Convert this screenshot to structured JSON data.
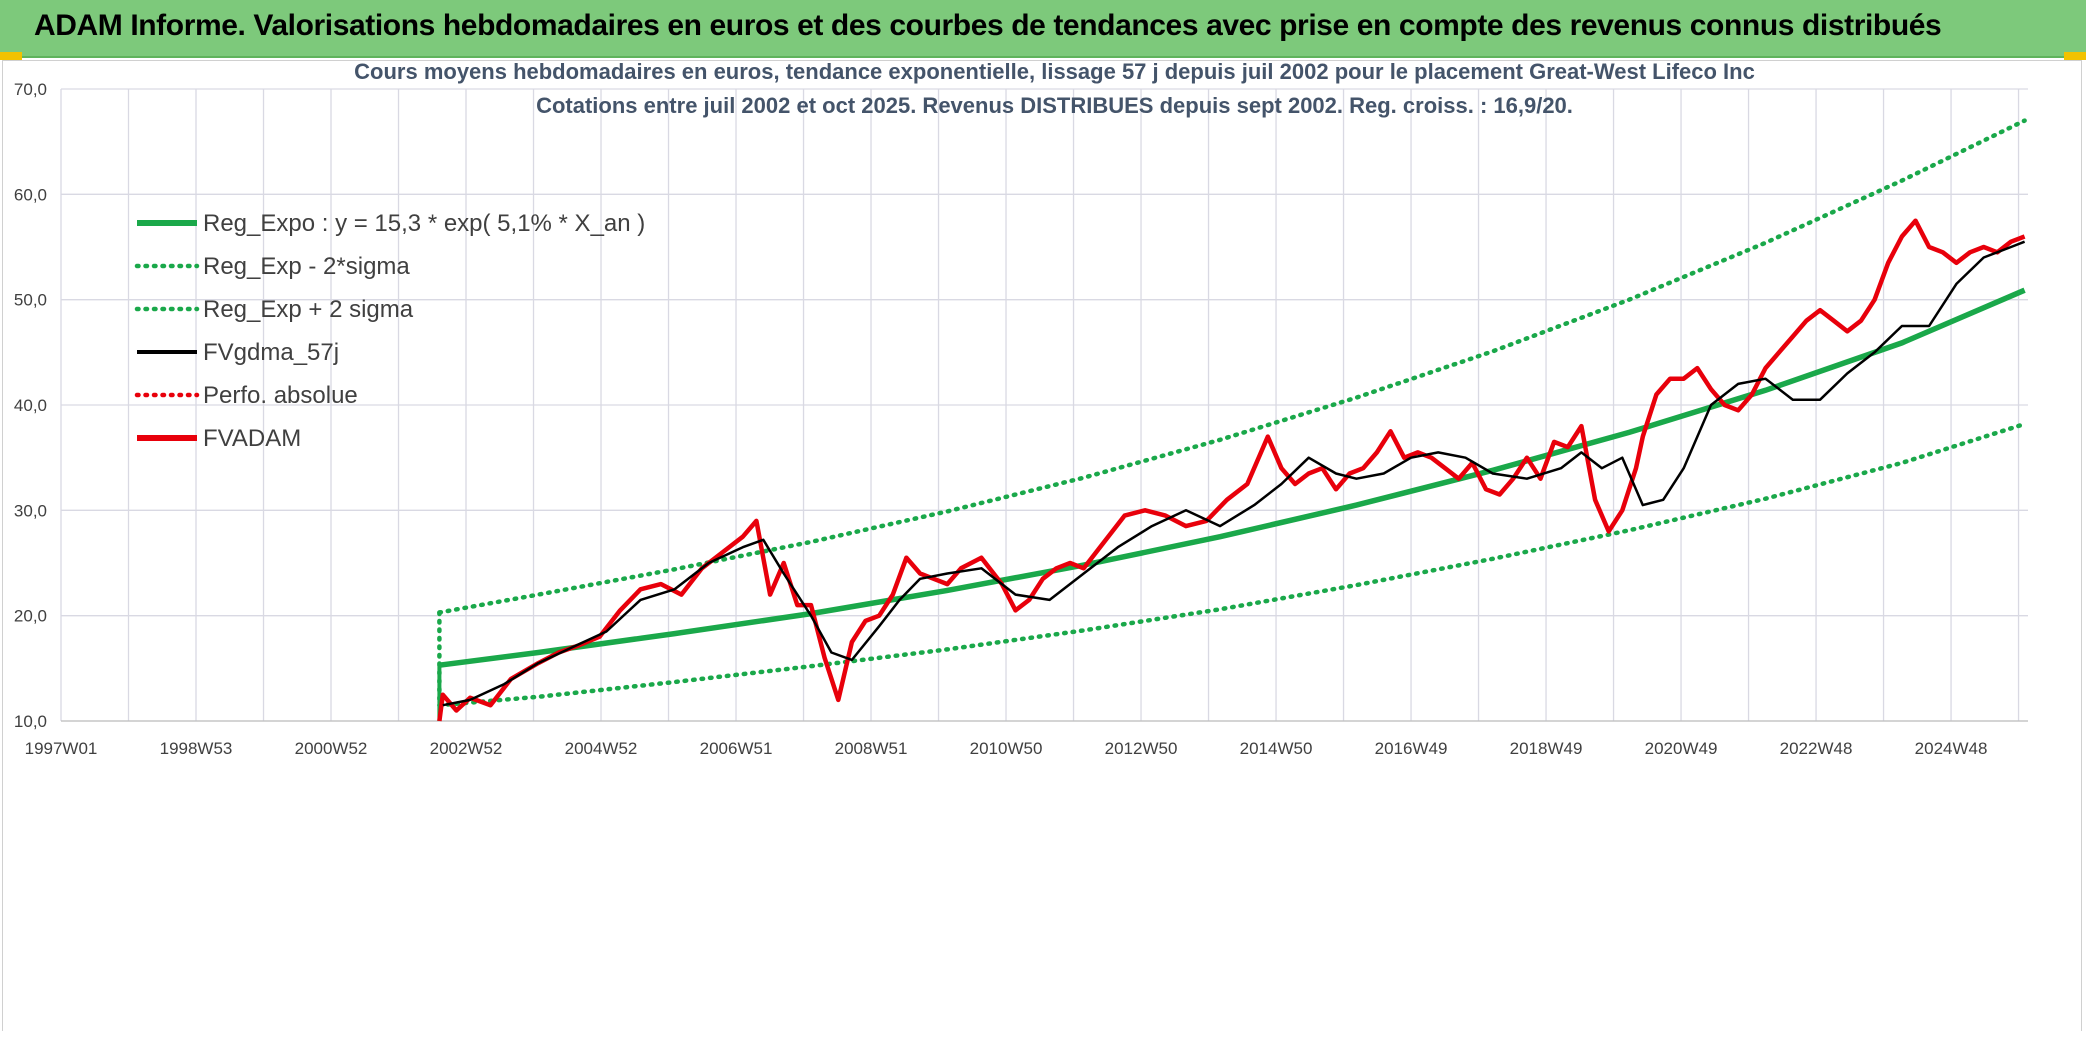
{
  "header": {
    "title": "ADAM Informe. Valorisations hebdomadaires en euros et des courbes de tendances avec prise en compte des revenus connus distribués"
  },
  "colors": {
    "header_bg": "#7dc97b",
    "reg_expo": "#1aa84a",
    "sigma_bands": "#1aa84a",
    "fvgdma": "#000000",
    "fvadam": "#e8000b",
    "perfo": "#e8000b",
    "grid": "#d9d9e3"
  },
  "chart_data": {
    "type": "line",
    "title_line1": "Cours moyens hebdomadaires en euros, tendance exponentielle, lissage 57 j depuis juil 2002 pour le placement Great-West Lifeco Inc",
    "title_line2": "Cotations entre juil 2002 et oct 2025. Revenus DISTRIBUES depuis sept 2002. Reg. croiss. : 16,9/20.",
    "x_tick_labels": [
      "1997W01",
      "1998W53",
      "2000W52",
      "2002W52",
      "2004W52",
      "2006W51",
      "2008W51",
      "2010W50",
      "2012W50",
      "2014W50",
      "2016W49",
      "2018W49",
      "2020W49",
      "2022W48",
      "2024W48"
    ],
    "x_range": [
      1997.0,
      2025.85
    ],
    "y_tick_labels": [
      "10,0",
      "20,0",
      "30,0",
      "40,0",
      "50,0",
      "60,0",
      "70,0"
    ],
    "ylim": [
      10,
      70
    ],
    "grid": true,
    "legend_position": "top-left",
    "legend": [
      {
        "key": "reg_expo",
        "label": "Reg_Expo : y = 15,3 * exp( 5,1% *  X_an )",
        "style": "solid-thick",
        "color": "#1aa84a"
      },
      {
        "key": "reg_minus",
        "label": "Reg_Exp - 2*sigma",
        "style": "dotted",
        "color": "#1aa84a"
      },
      {
        "key": "reg_plus",
        "label": "Reg_Exp + 2 sigma",
        "style": "dotted",
        "color": "#1aa84a"
      },
      {
        "key": "fvgdma",
        "label": "FVgdma_57j",
        "style": "solid",
        "color": "#000000"
      },
      {
        "key": "perfo",
        "label": "Perfo. absolue",
        "style": "dotted",
        "color": "#e8000b"
      },
      {
        "key": "fvadam",
        "label": "FVADAM",
        "style": "solid-thick",
        "color": "#e8000b"
      }
    ],
    "series": [
      {
        "name": "Reg_Expo : y = 15,3 * exp( 5,1% *  X_an )",
        "x": [
          2002.55,
          2004.0,
          2006.0,
          2008.0,
          2010.0,
          2012.0,
          2014.0,
          2016.0,
          2018.0,
          2020.0,
          2022.0,
          2024.0,
          2025.8
        ],
        "y": [
          15.3,
          16.5,
          18.3,
          20.2,
          22.4,
          24.8,
          27.5,
          30.5,
          33.8,
          37.4,
          41.4,
          45.9,
          50.9
        ]
      },
      {
        "name": "Reg_Exp - 2*sigma",
        "x": [
          2002.55,
          2004.0,
          2006.0,
          2008.0,
          2010.0,
          2012.0,
          2014.0,
          2016.0,
          2018.0,
          2020.0,
          2022.0,
          2024.0,
          2025.8
        ],
        "y": [
          11.5,
          12.3,
          13.7,
          15.2,
          16.8,
          18.6,
          20.6,
          22.9,
          25.4,
          28.1,
          31.1,
          34.5,
          38.2
        ]
      },
      {
        "name": "Reg_Exp + 2 sigma",
        "x": [
          2002.55,
          2004.0,
          2006.0,
          2008.0,
          2010.0,
          2012.0,
          2014.0,
          2016.0,
          2018.0,
          2020.0,
          2022.0,
          2024.0,
          2025.8
        ],
        "y": [
          20.3,
          22.0,
          24.4,
          27.0,
          29.9,
          33.1,
          36.7,
          40.7,
          45.1,
          50.0,
          55.4,
          61.3,
          67.0
        ]
      },
      {
        "name": "FVgdma_57j",
        "x": [
          2002.6,
          2003.0,
          2003.5,
          2004.0,
          2004.5,
          2005.0,
          2005.5,
          2006.0,
          2006.5,
          2007.0,
          2007.3,
          2007.6,
          2008.0,
          2008.3,
          2008.6,
          2009.0,
          2009.3,
          2009.6,
          2010.0,
          2010.5,
          2011.0,
          2011.5,
          2012.0,
          2012.5,
          2013.0,
          2013.5,
          2014.0,
          2014.5,
          2014.9,
          2015.3,
          2015.7,
          2016.0,
          2016.4,
          2016.8,
          2017.2,
          2017.6,
          2018.0,
          2018.5,
          2019.0,
          2019.3,
          2019.6,
          2019.9,
          2020.2,
          2020.5,
          2020.8,
          2021.2,
          2021.6,
          2022.0,
          2022.4,
          2022.8,
          2023.2,
          2023.6,
          2024.0,
          2024.4,
          2024.8,
          2025.2,
          2025.6,
          2025.8
        ],
        "y": [
          11.5,
          12.0,
          13.5,
          15.5,
          17.0,
          18.5,
          21.5,
          22.5,
          25.0,
          26.5,
          27.2,
          24.0,
          20.0,
          16.5,
          15.8,
          19.0,
          21.5,
          23.5,
          24.0,
          24.5,
          22.0,
          21.5,
          24.0,
          26.5,
          28.5,
          30.0,
          28.5,
          30.5,
          32.5,
          35.0,
          33.5,
          33.0,
          33.5,
          35.0,
          35.5,
          35.0,
          33.5,
          33.0,
          34.0,
          35.5,
          34.0,
          35.0,
          30.5,
          31.0,
          34.0,
          40.0,
          42.0,
          42.5,
          40.5,
          40.5,
          43.0,
          45.0,
          47.5,
          47.5,
          51.5,
          54.0,
          55.0,
          55.5
        ]
      },
      {
        "name": "FVADAM",
        "x": [
          2002.55,
          2002.6,
          2002.8,
          2003.0,
          2003.3,
          2003.6,
          2004.0,
          2004.3,
          2004.6,
          2004.9,
          2005.2,
          2005.5,
          2005.8,
          2006.1,
          2006.4,
          2006.7,
          2007.0,
          2007.2,
          2007.4,
          2007.6,
          2007.8,
          2008.0,
          2008.2,
          2008.4,
          2008.6,
          2008.8,
          2009.0,
          2009.2,
          2009.4,
          2009.6,
          2009.8,
          2010.0,
          2010.2,
          2010.5,
          2010.8,
          2011.0,
          2011.2,
          2011.4,
          2011.6,
          2011.8,
          2012.0,
          2012.3,
          2012.6,
          2012.9,
          2013.2,
          2013.5,
          2013.8,
          2014.1,
          2014.4,
          2014.7,
          2014.9,
          2015.1,
          2015.3,
          2015.5,
          2015.7,
          2015.9,
          2016.1,
          2016.3,
          2016.5,
          2016.7,
          2016.9,
          2017.1,
          2017.3,
          2017.5,
          2017.7,
          2017.9,
          2018.1,
          2018.3,
          2018.5,
          2018.7,
          2018.9,
          2019.1,
          2019.3,
          2019.5,
          2019.7,
          2019.9,
          2020.0,
          2020.1,
          2020.2,
          2020.4,
          2020.6,
          2020.8,
          2021.0,
          2021.2,
          2021.4,
          2021.6,
          2021.8,
          2022.0,
          2022.2,
          2022.4,
          2022.6,
          2022.8,
          2023.0,
          2023.2,
          2023.4,
          2023.6,
          2023.8,
          2024.0,
          2024.2,
          2024.4,
          2024.6,
          2024.8,
          2025.0,
          2025.2,
          2025.4,
          2025.6,
          2025.8
        ],
        "y": [
          10.0,
          12.5,
          11.0,
          12.2,
          11.5,
          14.0,
          15.5,
          16.5,
          17.2,
          18.0,
          20.5,
          22.5,
          23.0,
          22.0,
          24.5,
          26.0,
          27.5,
          29.0,
          22.0,
          25.0,
          21.0,
          21.0,
          16.0,
          12.0,
          17.5,
          19.5,
          20.0,
          22.0,
          25.5,
          24.0,
          23.5,
          23.0,
          24.5,
          25.5,
          23.0,
          20.5,
          21.5,
          23.5,
          24.5,
          25.0,
          24.5,
          27.0,
          29.5,
          30.0,
          29.5,
          28.5,
          29.0,
          31.0,
          32.5,
          37.0,
          34.0,
          32.5,
          33.5,
          34.0,
          32.0,
          33.5,
          34.0,
          35.5,
          37.5,
          35.0,
          35.5,
          35.0,
          34.0,
          33.0,
          34.5,
          32.0,
          31.5,
          33.0,
          35.0,
          33.0,
          36.5,
          36.0,
          38.0,
          31.0,
          28.0,
          30.0,
          32.0,
          34.0,
          37.0,
          41.0,
          42.5,
          42.5,
          43.5,
          41.5,
          40.0,
          39.5,
          41.0,
          43.5,
          45.0,
          46.5,
          48.0,
          49.0,
          48.0,
          47.0,
          48.0,
          50.0,
          53.5,
          56.0,
          57.5,
          55.0,
          54.5,
          53.5,
          54.5,
          55.0,
          54.5,
          55.5,
          56.0
        ]
      }
    ]
  }
}
